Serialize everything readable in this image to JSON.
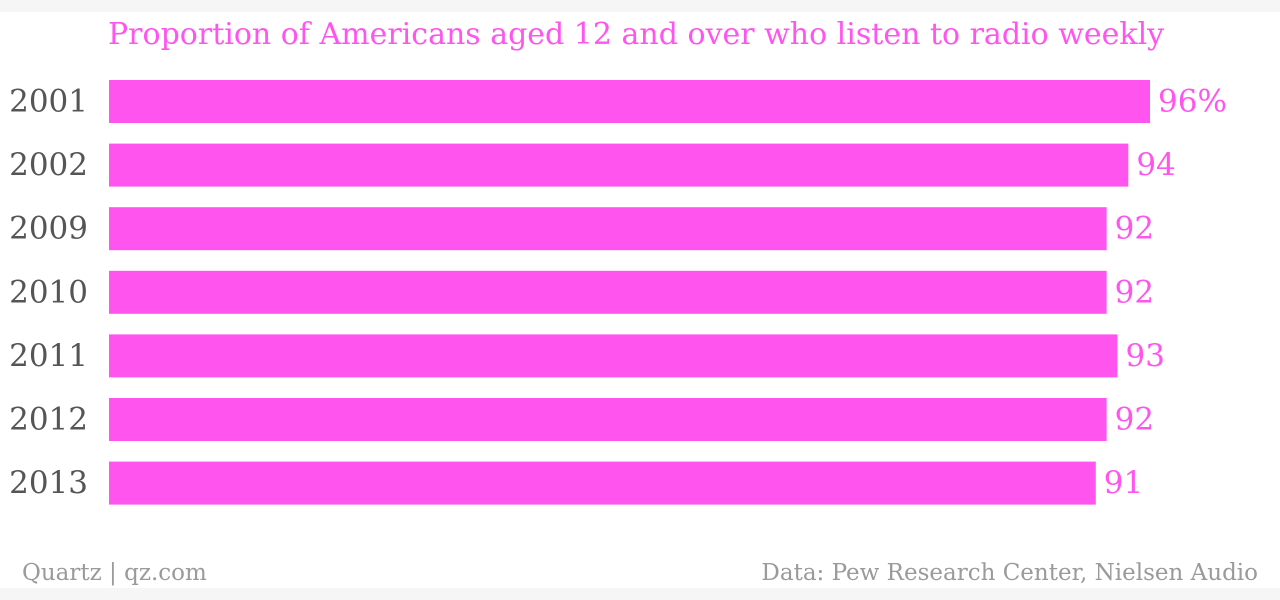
{
  "chart_data": {
    "type": "bar",
    "orientation": "horizontal",
    "title": "Proportion of Americans aged 12 and over who listen to radio weekly",
    "categories": [
      "2001",
      "2002",
      "2009",
      "2010",
      "2011",
      "2012",
      "2013"
    ],
    "values": [
      96,
      94,
      92,
      92,
      93,
      92,
      91
    ],
    "value_labels": [
      "96%",
      "94",
      "92",
      "92",
      "93",
      "92",
      "91"
    ],
    "xlim": [
      0,
      100
    ],
    "grid": false,
    "colors": {
      "bar": "#ff55ee",
      "title": "#ff55ee",
      "value_label": "#ff55ee",
      "category_label": "#555555",
      "footer": "#9a9a9a"
    }
  },
  "footer": {
    "source_left": "Quartz | qz.com",
    "source_right": "Data: Pew Research Center, Nielsen Audio"
  }
}
